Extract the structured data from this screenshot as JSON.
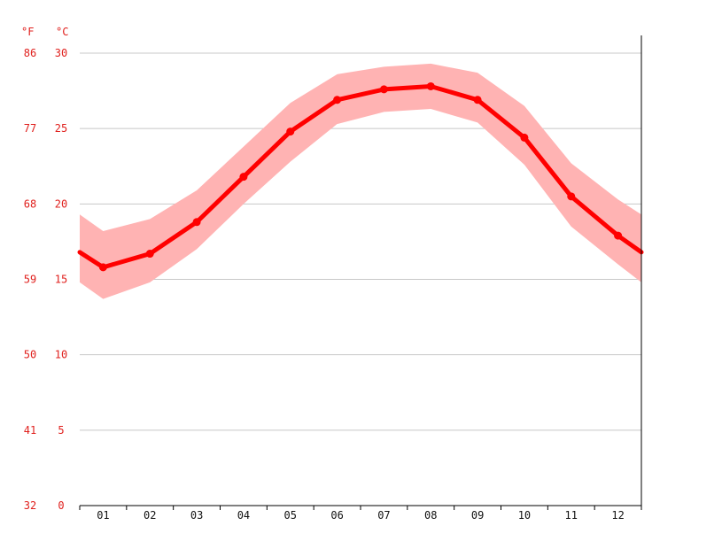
{
  "chart_data": {
    "type": "line",
    "title": "",
    "xlabel": "",
    "ylabel": "",
    "units": {
      "fahrenheit": "°F",
      "celsius": "°C"
    },
    "categories": [
      "01",
      "02",
      "03",
      "04",
      "05",
      "06",
      "07",
      "08",
      "09",
      "10",
      "11",
      "12"
    ],
    "x_range": [
      0.5,
      12.5
    ],
    "ylim": [
      0,
      30
    ],
    "grid": true,
    "yticks_c": [
      "0",
      "5",
      "10",
      "15",
      "20",
      "25",
      "30"
    ],
    "yticks_f": [
      "32",
      "41",
      "50",
      "59",
      "68",
      "77",
      "86"
    ],
    "series": [
      {
        "role": "mean",
        "color": "#ff0000",
        "values": [
          15.8,
          16.7,
          18.8,
          21.8,
          24.8,
          26.9,
          27.6,
          27.8,
          26.9,
          24.4,
          20.5,
          17.9
        ],
        "edge_values": [
          16.8,
          16.8
        ]
      },
      {
        "role": "range-band",
        "color": "#ffb3b3",
        "low": [
          13.7,
          14.8,
          17.0,
          20.0,
          22.8,
          25.3,
          26.1,
          26.3,
          25.4,
          22.6,
          18.5,
          16.0
        ],
        "high": [
          18.2,
          19.0,
          20.9,
          23.8,
          26.7,
          28.6,
          29.1,
          29.3,
          28.7,
          26.5,
          22.7,
          20.3
        ],
        "edge_low": [
          14.8,
          14.8
        ],
        "edge_high": [
          19.3,
          19.3
        ]
      }
    ]
  }
}
